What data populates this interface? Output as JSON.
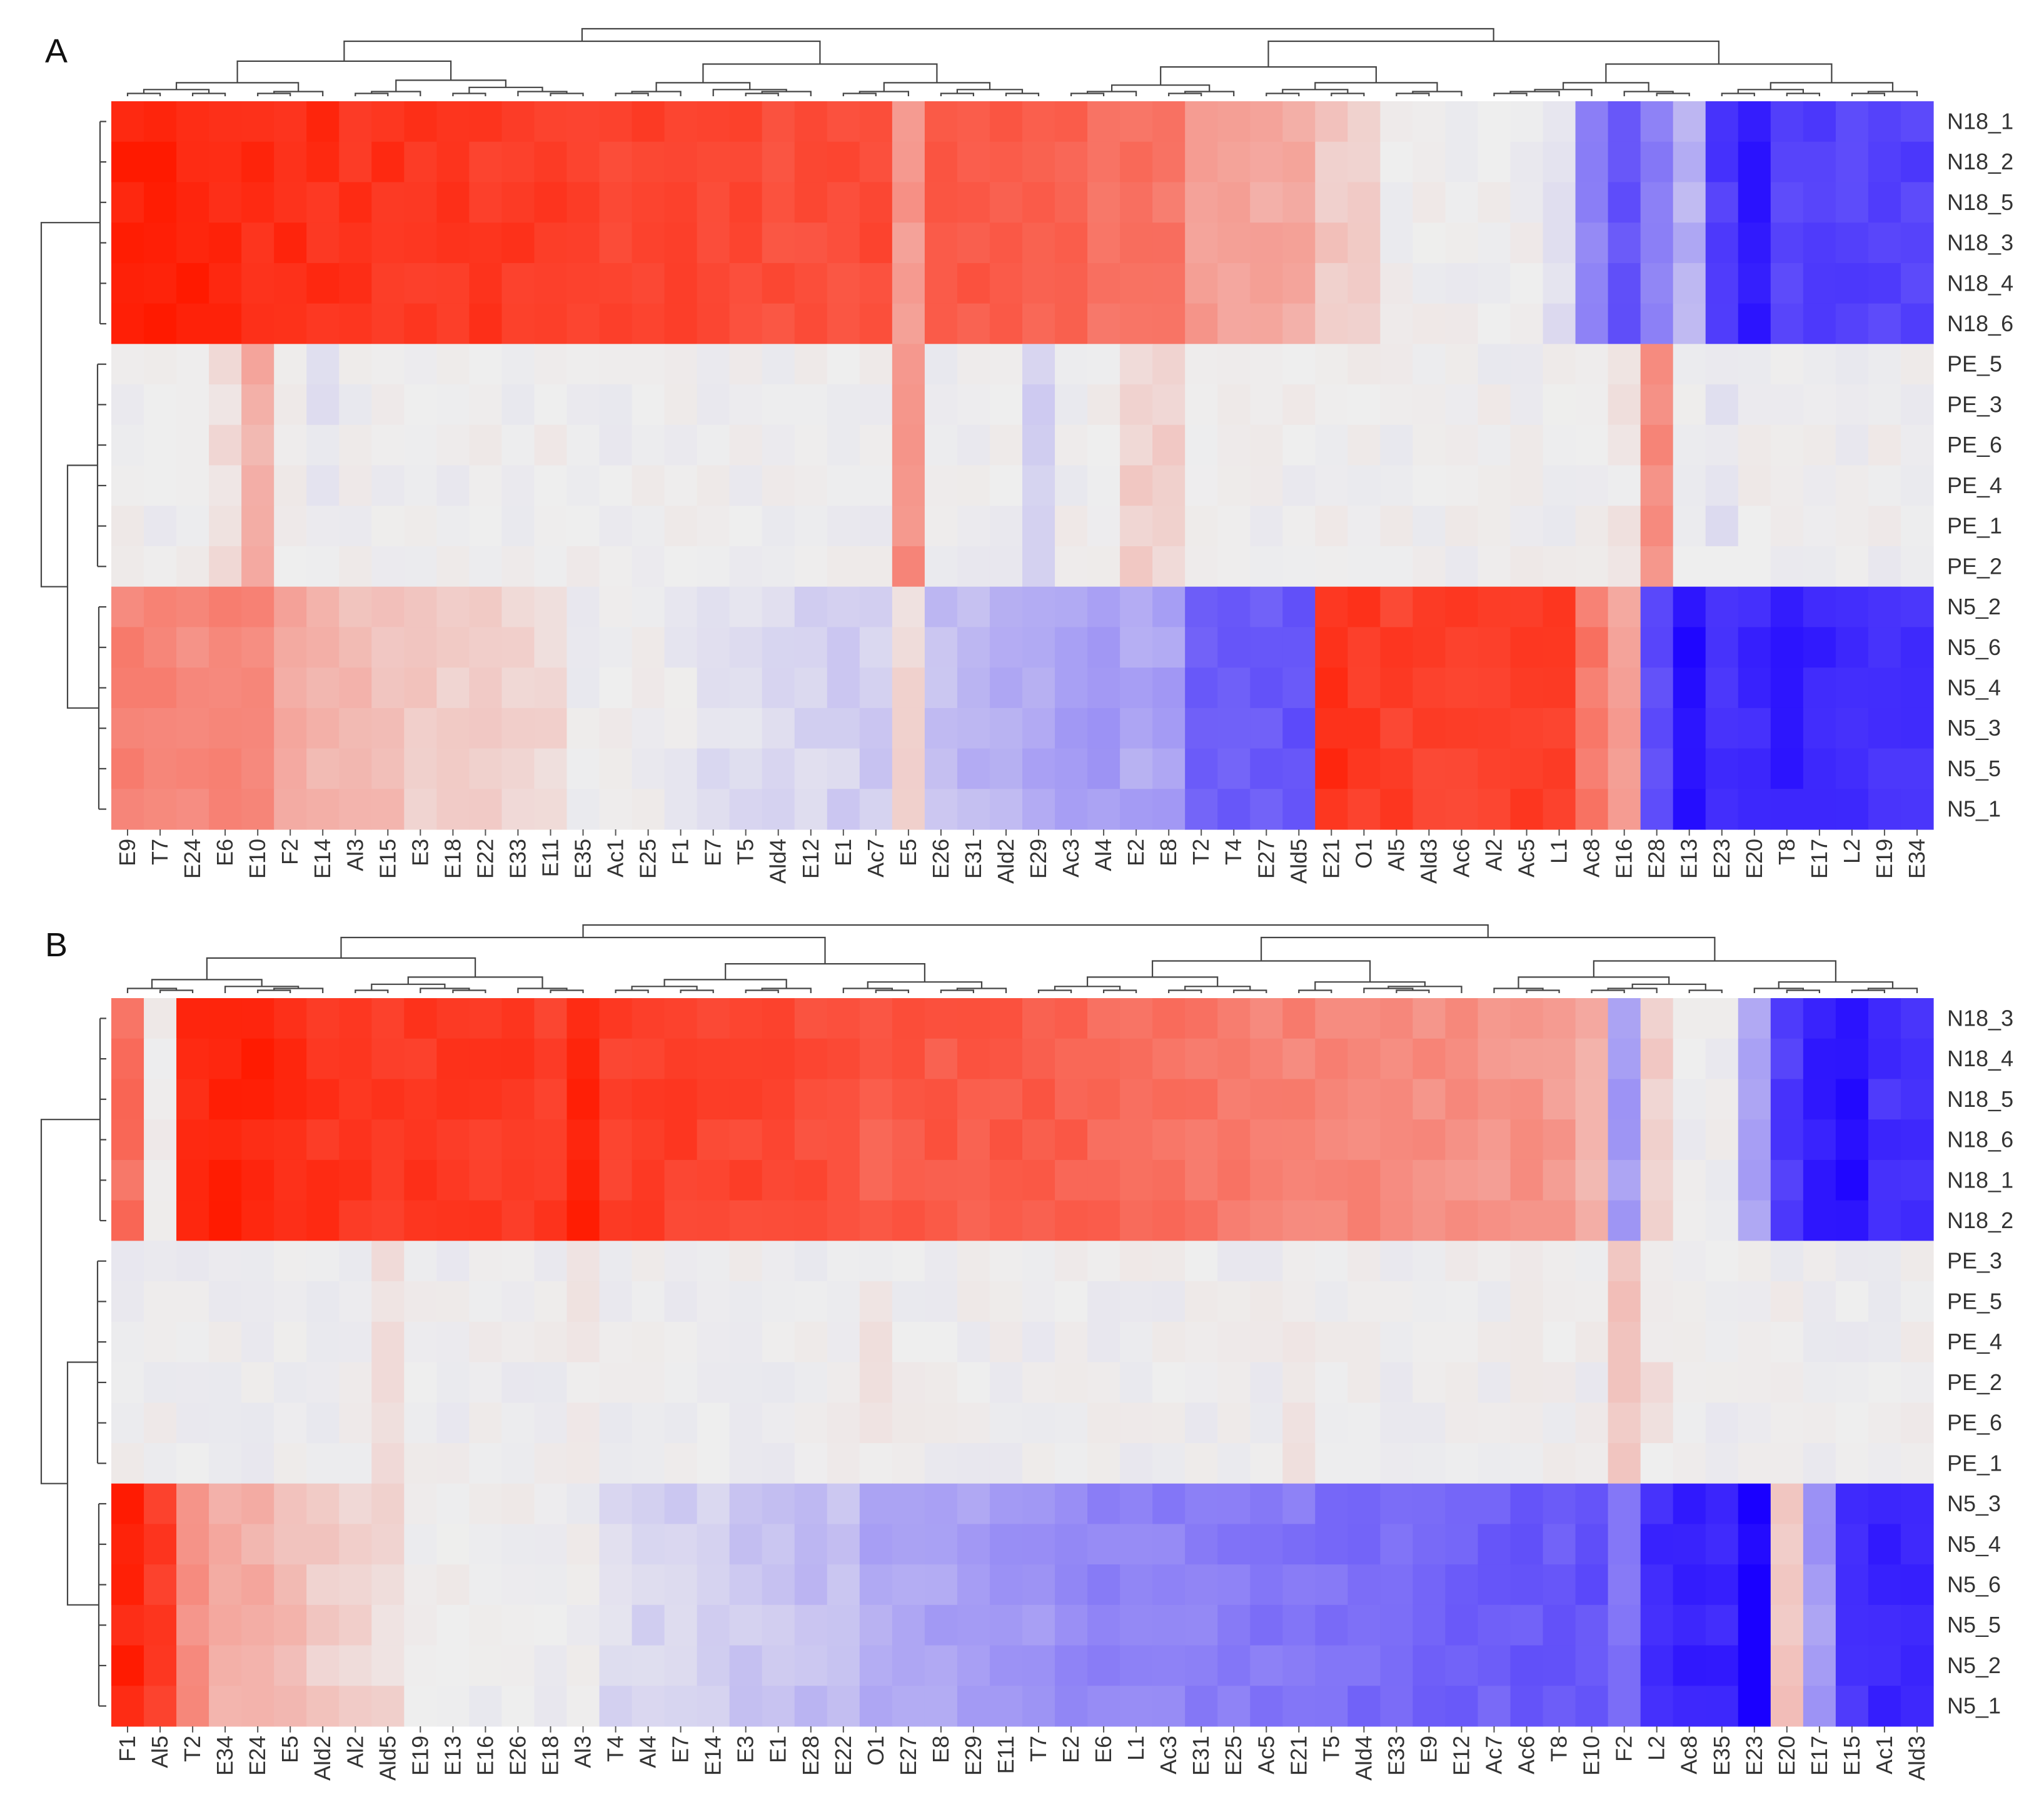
{
  "chart_data": [
    {
      "type": "heatmap",
      "panel_label": "A",
      "colormap": {
        "low": "#1a00ff",
        "mid": "#eeeeee",
        "high": "#ff1a00",
        "range": [
          -1,
          1
        ]
      },
      "rows": [
        "N18_1",
        "N18_2",
        "N18_5",
        "N18_3",
        "N18_4",
        "N18_6",
        "PE_5",
        "PE_3",
        "PE_6",
        "PE_4",
        "PE_1",
        "PE_2",
        "N5_2",
        "N5_6",
        "N5_4",
        "N5_3",
        "N5_5",
        "N5_1"
      ],
      "columns": [
        "E9",
        "T7",
        "E24",
        "E6",
        "E10",
        "F2",
        "E14",
        "Al3",
        "E15",
        "E3",
        "E18",
        "E22",
        "E33",
        "E11",
        "E35",
        "Ac1",
        "E25",
        "F1",
        "E7",
        "T5",
        "Ald4",
        "E12",
        "E1",
        "Ac7",
        "E5",
        "E26",
        "E31",
        "Ald2",
        "E29",
        "Ac3",
        "Al4",
        "E2",
        "E8",
        "T2",
        "T4",
        "E27",
        "Ald5",
        "E21",
        "O1",
        "Al5",
        "Ald3",
        "Ac6",
        "Al2",
        "Ac5",
        "L1",
        "Ac8",
        "E16",
        "E28",
        "E13",
        "E23",
        "E20",
        "T8",
        "E17",
        "L2",
        "E19",
        "E34"
      ],
      "group_profiles": {
        "N18": [
          0.98,
          0.98,
          0.96,
          0.92,
          0.92,
          0.92,
          0.9,
          0.88,
          0.88,
          0.86,
          0.85,
          0.85,
          0.84,
          0.83,
          0.8,
          0.8,
          0.8,
          0.78,
          0.78,
          0.78,
          0.76,
          0.76,
          0.76,
          0.76,
          0.4,
          0.72,
          0.7,
          0.68,
          0.66,
          0.64,
          0.6,
          0.58,
          0.56,
          0.38,
          0.36,
          0.34,
          0.32,
          0.18,
          0.16,
          0,
          0,
          0,
          0,
          0,
          -0.05,
          -0.45,
          -0.65,
          -0.45,
          -0.25,
          -0.75,
          -0.9,
          -0.72,
          -0.72,
          -0.72,
          -0.72,
          -0.72
        ],
        "PE": [
          0,
          0,
          0,
          0.08,
          0.3,
          0,
          -0.04,
          0,
          0,
          0,
          0,
          0,
          0,
          0.04,
          0,
          0,
          0,
          0,
          0,
          0,
          0,
          0,
          0,
          0,
          0.45,
          0,
          0,
          0,
          -0.12,
          0,
          0,
          0.14,
          0.14,
          0,
          0,
          0,
          0,
          0,
          0,
          0,
          0,
          0,
          0,
          0,
          0,
          0,
          0.04,
          0.45,
          0,
          -0.05,
          0,
          0,
          0,
          0,
          0,
          0
        ],
        "N5": [
          0.5,
          0.5,
          0.46,
          0.52,
          0.5,
          0.32,
          0.26,
          0.24,
          0.22,
          0.16,
          0.14,
          0.14,
          0.14,
          0.1,
          0,
          0,
          0,
          -0.04,
          -0.06,
          -0.08,
          -0.08,
          -0.1,
          -0.12,
          -0.14,
          0.1,
          -0.2,
          -0.24,
          -0.26,
          -0.3,
          -0.32,
          -0.36,
          -0.3,
          -0.32,
          -0.6,
          -0.6,
          -0.62,
          -0.65,
          0.9,
          0.85,
          0.82,
          0.82,
          0.82,
          0.82,
          0.82,
          0.82,
          0.55,
          0.35,
          -0.7,
          -0.95,
          -0.78,
          -0.82,
          -0.88,
          -0.85,
          -0.8,
          -0.8,
          -0.8
        ]
      },
      "row_dendrogram": "three clusters: N18 | PE | N5",
      "column_dendrogram": true
    },
    {
      "type": "heatmap",
      "panel_label": "B",
      "colormap": {
        "low": "#1a00ff",
        "mid": "#eeeeee",
        "high": "#ff1a00",
        "range": [
          -1,
          1
        ]
      },
      "rows": [
        "N18_3",
        "N18_4",
        "N18_5",
        "N18_6",
        "N18_1",
        "N18_2",
        "PE_3",
        "PE_5",
        "PE_4",
        "PE_2",
        "PE_6",
        "PE_1",
        "N5_3",
        "N5_4",
        "N5_6",
        "N5_5",
        "N5_2",
        "N5_1"
      ],
      "columns": [
        "F1",
        "Al5",
        "T2",
        "E34",
        "E24",
        "E5",
        "Ald2",
        "Al2",
        "Ald5",
        "E19",
        "E13",
        "E16",
        "E26",
        "E18",
        "Al3",
        "T4",
        "Al4",
        "E7",
        "E14",
        "E3",
        "E1",
        "E28",
        "E22",
        "O1",
        "E27",
        "E8",
        "E29",
        "E11",
        "T7",
        "E2",
        "E6",
        "L1",
        "Ac3",
        "E31",
        "E25",
        "Ac5",
        "E21",
        "T5",
        "Ald4",
        "E33",
        "E9",
        "E12",
        "Ac7",
        "Ac6",
        "T8",
        "E10",
        "F2",
        "L2",
        "Ac8",
        "E35",
        "E23",
        "E20",
        "E17",
        "E15",
        "Ac1",
        "Ald3"
      ],
      "group_profiles": {
        "N18": [
          0.6,
          0,
          0.95,
          0.95,
          0.95,
          0.9,
          0.88,
          0.86,
          0.86,
          0.86,
          0.85,
          0.85,
          0.85,
          0.84,
          0.95,
          0.82,
          0.82,
          0.82,
          0.8,
          0.8,
          0.78,
          0.76,
          0.76,
          0.68,
          0.72,
          0.7,
          0.7,
          0.7,
          0.68,
          0.66,
          0.64,
          0.62,
          0.6,
          0.58,
          0.56,
          0.5,
          0.5,
          0.5,
          0.48,
          0.46,
          0.46,
          0.44,
          0.42,
          0.42,
          0.4,
          0.3,
          -0.35,
          0.15,
          0,
          0,
          -0.3,
          -0.75,
          -0.9,
          -0.95,
          -0.8,
          -0.8
        ],
        "PE": [
          0,
          0,
          0,
          0,
          0,
          0,
          0,
          0,
          0.06,
          0,
          0,
          0,
          0,
          0,
          0.02,
          0,
          0,
          0,
          0,
          0,
          0,
          0,
          0,
          0.04,
          0,
          0,
          0,
          0,
          0,
          0,
          0,
          0,
          0,
          0,
          0,
          0,
          0.04,
          0,
          0,
          0,
          0,
          0,
          0,
          0,
          0,
          0,
          0.2,
          0.05,
          0,
          0,
          0,
          0,
          0,
          0,
          0,
          0
        ],
        "N5": [
          0.95,
          0.85,
          0.45,
          0.3,
          0.3,
          0.24,
          0.16,
          0.12,
          0.1,
          0,
          0,
          0,
          0,
          0,
          0,
          -0.08,
          -0.1,
          -0.12,
          -0.14,
          -0.16,
          -0.18,
          -0.2,
          -0.2,
          -0.3,
          -0.3,
          -0.32,
          -0.34,
          -0.36,
          -0.38,
          -0.42,
          -0.44,
          -0.44,
          -0.46,
          -0.46,
          -0.48,
          -0.5,
          -0.5,
          -0.52,
          -0.54,
          -0.56,
          -0.58,
          -0.6,
          -0.6,
          -0.62,
          -0.62,
          -0.65,
          -0.5,
          -0.82,
          -0.85,
          -0.85,
          -1,
          0.2,
          -0.35,
          -0.8,
          -0.85,
          -0.85
        ]
      },
      "row_dendrogram": "three clusters: N18 | PE | N5",
      "column_dendrogram": true
    }
  ]
}
